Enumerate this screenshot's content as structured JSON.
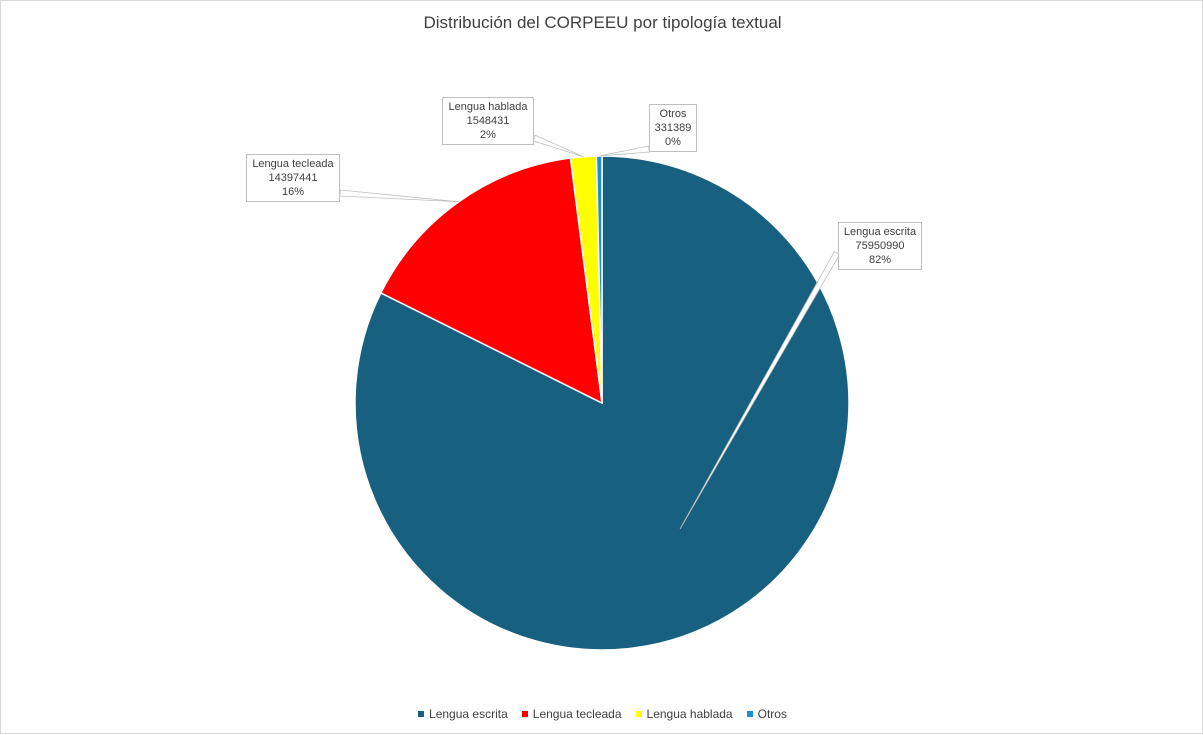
{
  "chart_data": {
    "type": "pie",
    "title": "Distribución del CORPEEU por tipología textual",
    "series": [
      {
        "name": "Lengua escrita",
        "value": 75950990,
        "percent": "82%",
        "color": "#17607f"
      },
      {
        "name": "Lengua tecleada",
        "value": 14397441,
        "percent": "16%",
        "color": "#ff0000"
      },
      {
        "name": "Lengua hablada",
        "value": 1548431,
        "percent": "2%",
        "color": "#ffff00"
      },
      {
        "name": "Otros",
        "value": 331389,
        "percent": "0%",
        "color": "#1f8fc9"
      }
    ],
    "legend": "bottom"
  }
}
